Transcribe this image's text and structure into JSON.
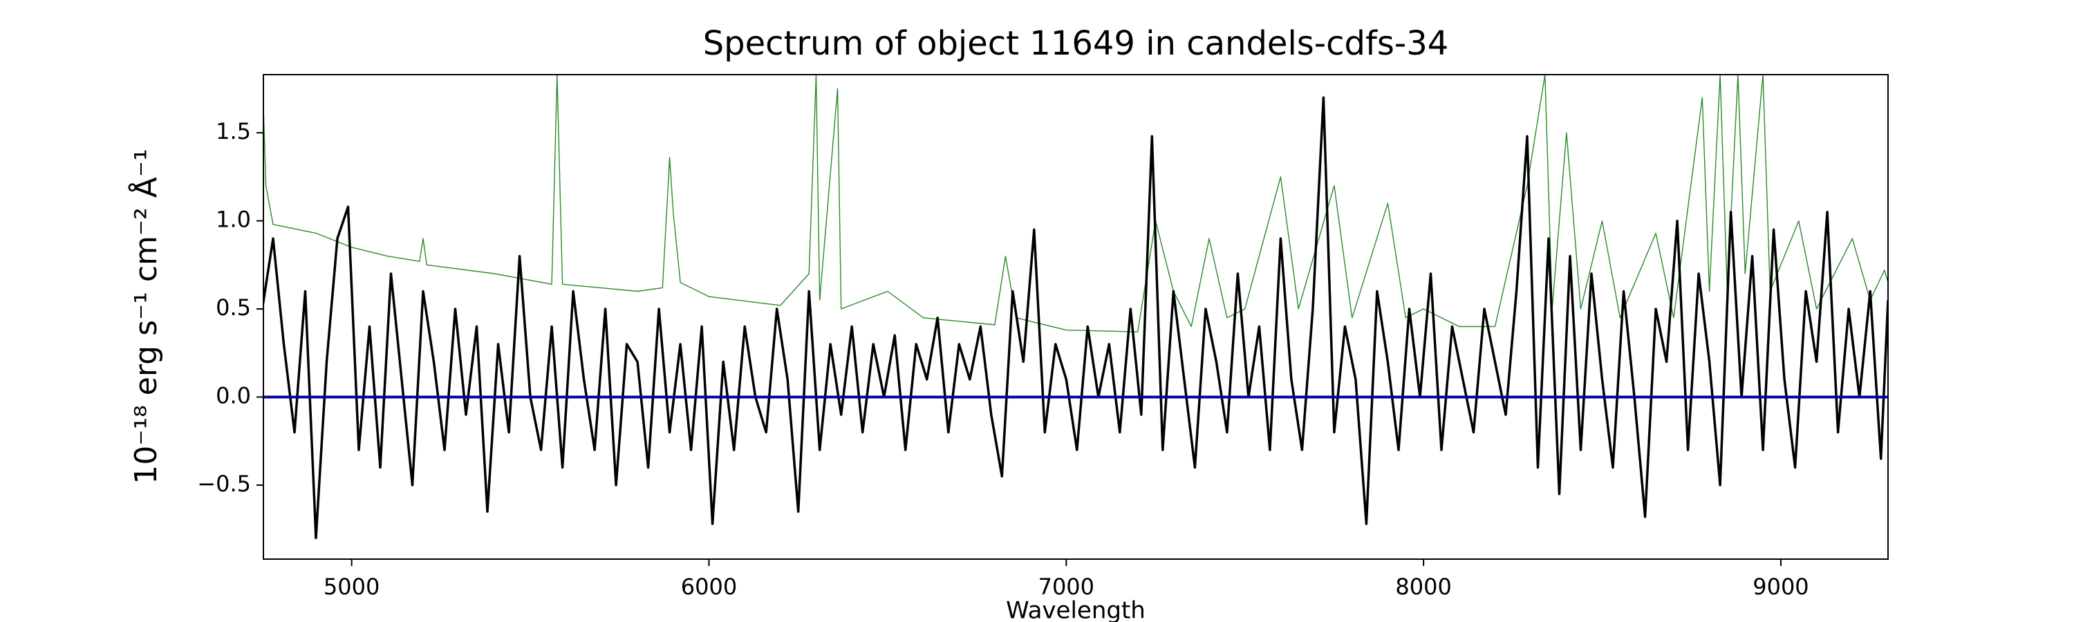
{
  "chart_data": {
    "type": "line",
    "title": "Spectrum of object 11649 in candels-cdfs-34",
    "xlabel": "Wavelength",
    "ylabel": "10⁻¹⁸ erg s⁻¹ cm⁻² Å⁻¹",
    "xlim": [
      4753,
      9300
    ],
    "ylim": [
      -0.92,
      1.83
    ],
    "xticks": [
      5000,
      6000,
      7000,
      8000,
      9000
    ],
    "yticks": [
      {
        "value": -0.5,
        "label": "−0.5"
      },
      {
        "value": 0.0,
        "label": "0.0"
      },
      {
        "value": 0.5,
        "label": "0.5"
      },
      {
        "value": 1.0,
        "label": "1.0"
      },
      {
        "value": 1.5,
        "label": "1.5"
      }
    ],
    "grid": false,
    "series": [
      {
        "color": "#2a8a2a",
        "x": [
          4753,
          4760,
          4780,
          4900,
          5000,
          5100,
          5190,
          5200,
          5210,
          5400,
          5560,
          5575,
          5590,
          5800,
          5870,
          5890,
          5900,
          5920,
          6000,
          6200,
          6280,
          6300,
          6310,
          6360,
          6370,
          6500,
          6600,
          6800,
          6830,
          6860,
          7000,
          7200,
          7250,
          7300,
          7350,
          7400,
          7450,
          7500,
          7600,
          7650,
          7750,
          7800,
          7900,
          7950,
          8000,
          8100,
          8200,
          8290,
          8340,
          8360,
          8400,
          8440,
          8500,
          8550,
          8650,
          8700,
          8780,
          8800,
          8830,
          8850,
          8880,
          8900,
          8950,
          8970,
          9050,
          9100,
          9200,
          9250,
          9290,
          9300
        ],
        "values": [
          1.65,
          1.2,
          0.98,
          0.93,
          0.85,
          0.8,
          0.77,
          0.9,
          0.75,
          0.7,
          0.64,
          1.83,
          0.64,
          0.6,
          0.62,
          1.36,
          1.05,
          0.65,
          0.57,
          0.52,
          0.7,
          1.83,
          0.55,
          1.75,
          0.5,
          0.6,
          0.45,
          0.41,
          0.8,
          0.45,
          0.38,
          0.37,
          1.0,
          0.6,
          0.4,
          0.9,
          0.45,
          0.5,
          1.25,
          0.5,
          1.2,
          0.45,
          1.1,
          0.45,
          0.5,
          0.4,
          0.4,
          1.2,
          1.83,
          0.5,
          1.5,
          0.5,
          1.0,
          0.45,
          0.93,
          0.45,
          1.7,
          0.6,
          1.83,
          0.6,
          1.83,
          0.7,
          1.83,
          0.6,
          1.0,
          0.5,
          0.9,
          0.55,
          0.72,
          0.65
        ]
      },
      {
        "color": "#000000",
        "x": [
          4750,
          4780,
          4810,
          4840,
          4870,
          4900,
          4930,
          4960,
          4990,
          5020,
          5050,
          5080,
          5110,
          5140,
          5170,
          5200,
          5230,
          5260,
          5290,
          5320,
          5350,
          5380,
          5410,
          5440,
          5470,
          5500,
          5530,
          5560,
          5590,
          5620,
          5650,
          5680,
          5710,
          5740,
          5770,
          5800,
          5830,
          5860,
          5890,
          5920,
          5950,
          5980,
          6010,
          6040,
          6070,
          6100,
          6130,
          6160,
          6190,
          6220,
          6250,
          6280,
          6310,
          6340,
          6370,
          6400,
          6430,
          6460,
          6490,
          6520,
          6550,
          6580,
          6610,
          6640,
          6670,
          6700,
          6730,
          6760,
          6790,
          6820,
          6850,
          6880,
          6910,
          6940,
          6970,
          7000,
          7030,
          7060,
          7090,
          7120,
          7150,
          7180,
          7210,
          7240,
          7270,
          7300,
          7330,
          7360,
          7390,
          7420,
          7450,
          7480,
          7510,
          7540,
          7570,
          7600,
          7630,
          7660,
          7690,
          7720,
          7750,
          7780,
          7810,
          7840,
          7870,
          7900,
          7930,
          7960,
          7990,
          8020,
          8050,
          8080,
          8110,
          8140,
          8170,
          8200,
          8230,
          8260,
          8290,
          8320,
          8350,
          8380,
          8410,
          8440,
          8470,
          8500,
          8530,
          8560,
          8590,
          8620,
          8650,
          8680,
          8710,
          8740,
          8770,
          8800,
          8830,
          8860,
          8890,
          8920,
          8950,
          8980,
          9010,
          9040,
          9070,
          9100,
          9130,
          9160,
          9190,
          9220,
          9250,
          9280,
          9300
        ],
        "values": [
          0.5,
          0.9,
          0.3,
          -0.2,
          0.6,
          -0.8,
          0.2,
          0.9,
          1.08,
          -0.3,
          0.4,
          -0.4,
          0.7,
          0.1,
          -0.5,
          0.6,
          0.2,
          -0.3,
          0.5,
          -0.1,
          0.4,
          -0.65,
          0.3,
          -0.2,
          0.8,
          0.0,
          -0.3,
          0.4,
          -0.4,
          0.6,
          0.1,
          -0.3,
          0.5,
          -0.5,
          0.3,
          0.2,
          -0.4,
          0.5,
          -0.2,
          0.3,
          -0.3,
          0.4,
          -0.72,
          0.2,
          -0.3,
          0.4,
          0.0,
          -0.2,
          0.5,
          0.1,
          -0.65,
          0.6,
          -0.3,
          0.3,
          -0.1,
          0.4,
          -0.2,
          0.3,
          0.0,
          0.35,
          -0.3,
          0.3,
          0.1,
          0.45,
          -0.2,
          0.3,
          0.1,
          0.4,
          -0.1,
          -0.45,
          0.6,
          0.2,
          0.95,
          -0.2,
          0.3,
          0.1,
          -0.3,
          0.4,
          0.0,
          0.3,
          -0.2,
          0.5,
          -0.1,
          1.48,
          -0.3,
          0.6,
          0.1,
          -0.4,
          0.5,
          0.2,
          -0.2,
          0.7,
          0.0,
          0.4,
          -0.3,
          0.9,
          0.1,
          -0.3,
          0.5,
          1.7,
          -0.2,
          0.4,
          0.1,
          -0.72,
          0.6,
          0.2,
          -0.3,
          0.5,
          0.0,
          0.7,
          -0.3,
          0.4,
          0.1,
          -0.2,
          0.5,
          0.2,
          -0.1,
          0.6,
          1.48,
          -0.4,
          0.9,
          -0.55,
          0.8,
          -0.3,
          0.7,
          0.1,
          -0.4,
          0.6,
          0.0,
          -0.68,
          0.5,
          0.2,
          1.0,
          -0.3,
          0.7,
          0.2,
          -0.5,
          1.05,
          0.0,
          0.8,
          -0.3,
          0.95,
          0.1,
          -0.4,
          0.6,
          0.2,
          1.05,
          -0.2,
          0.5,
          0.0,
          0.6,
          -0.35,
          0.55
        ]
      },
      {
        "color": "#0000aa",
        "x": [
          4753,
          9300
        ],
        "values": [
          0,
          0
        ]
      }
    ]
  }
}
